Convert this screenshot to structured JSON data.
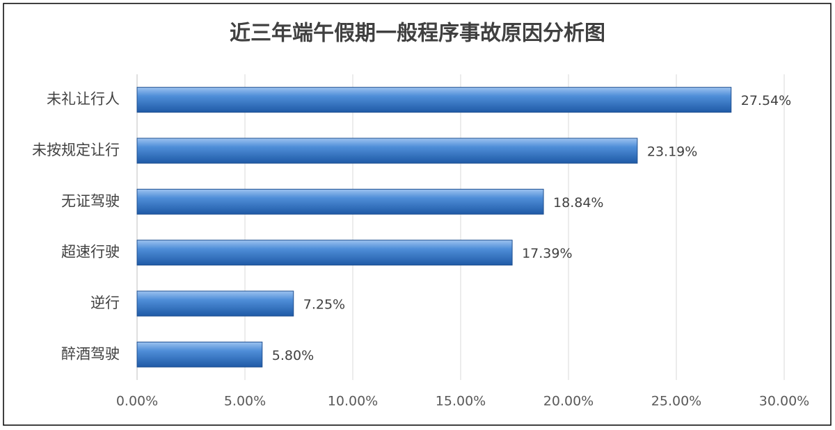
{
  "chart_data": {
    "type": "bar",
    "orientation": "horizontal",
    "title": "近三年端午假期一般程序事故原因分析图",
    "categories": [
      "未礼让行人",
      "未按规定让行",
      "无证驾驶",
      "超速行驶",
      "逆行",
      "醉酒驾驶"
    ],
    "values": [
      27.54,
      23.19,
      18.84,
      17.39,
      7.25,
      5.8
    ],
    "value_labels": [
      "27.54%",
      "23.19%",
      "18.84%",
      "17.39%",
      "7.25%",
      "5.80%"
    ],
    "color": "#3b78c8",
    "xlim": [
      0,
      30
    ],
    "xticks": [
      {
        "value": 0,
        "label": "0.00%"
      },
      {
        "value": 5,
        "label": "5.00%"
      },
      {
        "value": 10,
        "label": "10.00%"
      },
      {
        "value": 15,
        "label": "15.00%"
      },
      {
        "value": 20,
        "label": "20.00%"
      },
      {
        "value": 25,
        "label": "25.00%"
      },
      {
        "value": 30,
        "label": "30.00%"
      }
    ],
    "grid": true
  }
}
